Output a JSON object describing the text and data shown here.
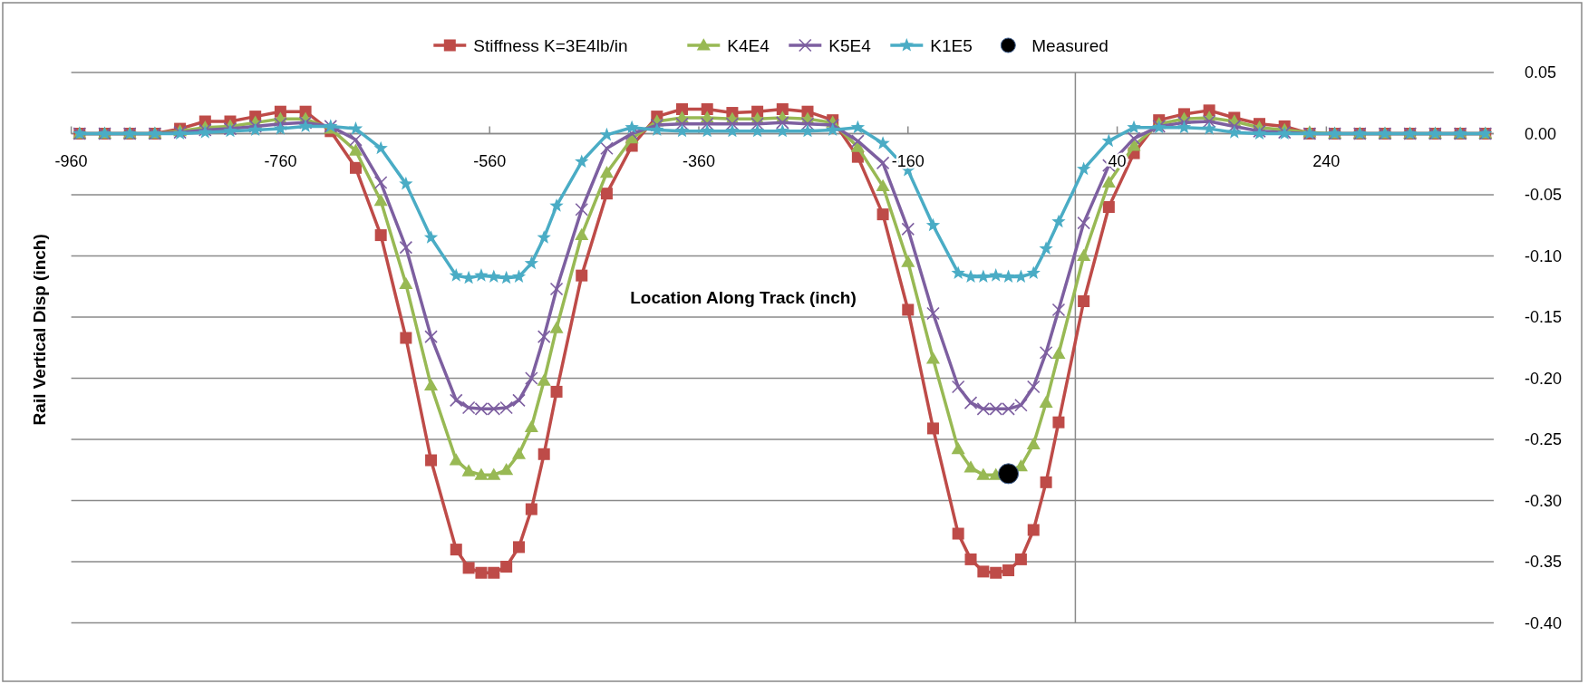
{
  "chart_data": {
    "type": "line",
    "xlabel": "Location Along Track (inch)",
    "ylabel": "Rail Vertical Disp (inch)",
    "x": [
      -952,
      -928,
      -904,
      -880,
      -856,
      -832,
      -808,
      -784,
      -760,
      -736,
      -712,
      -688,
      -664,
      -640,
      -616,
      -592,
      -580,
      -568,
      -556,
      -544,
      -532,
      -520,
      -508,
      -496,
      -472,
      -448,
      -424,
      -400,
      -376,
      -352,
      -328,
      -304,
      -280,
      -256,
      -232,
      -208,
      -184,
      -160,
      -136,
      -112,
      -100,
      -88,
      -76,
      -64,
      -52,
      -40,
      -28,
      -16,
      8,
      32,
      56,
      80,
      104,
      128,
      152,
      176,
      200,
      224,
      248,
      272,
      296,
      320,
      344,
      368,
      392
    ],
    "series": [
      {
        "name": "Stiffness K=3E4lb/in",
        "color": "#be4b48",
        "marker": "square",
        "values": [
          0,
          0,
          0,
          0,
          0.004,
          0.01,
          0.01,
          0.014,
          0.018,
          0.018,
          0.002,
          -0.028,
          -0.083,
          -0.167,
          -0.267,
          -0.34,
          -0.355,
          -0.359,
          -0.359,
          -0.354,
          -0.338,
          -0.307,
          -0.262,
          -0.211,
          -0.116,
          -0.049,
          -0.01,
          0.014,
          0.02,
          0.02,
          0.017,
          0.018,
          0.02,
          0.018,
          0.011,
          -0.019,
          -0.066,
          -0.144,
          -0.241,
          -0.327,
          -0.348,
          -0.358,
          -0.359,
          -0.357,
          -0.348,
          -0.324,
          -0.285,
          -0.236,
          -0.137,
          -0.06,
          -0.016,
          0.011,
          0.016,
          0.019,
          0.013,
          0.008,
          0.006,
          0,
          0,
          0,
          0,
          0,
          0,
          0,
          0
        ]
      },
      {
        "name": "K4E4",
        "color": "#98b954",
        "marker": "triangle",
        "values": [
          0,
          0,
          0,
          0,
          0.002,
          0.005,
          0.006,
          0.009,
          0.012,
          0.012,
          0.004,
          -0.014,
          -0.055,
          -0.123,
          -0.206,
          -0.267,
          -0.276,
          -0.279,
          -0.279,
          -0.275,
          -0.262,
          -0.24,
          -0.202,
          -0.159,
          -0.083,
          -0.032,
          -0.004,
          0.01,
          0.013,
          0.013,
          0.012,
          0.012,
          0.013,
          0.012,
          0.009,
          -0.011,
          -0.043,
          -0.105,
          -0.184,
          -0.258,
          -0.273,
          -0.279,
          -0.279,
          null,
          -0.272,
          -0.254,
          -0.22,
          -0.18,
          -0.1,
          -0.04,
          -0.01,
          0.008,
          0.012,
          0.013,
          0.01,
          0.005,
          0.003,
          0.001,
          0,
          0,
          0,
          0,
          0,
          0,
          0
        ]
      },
      {
        "name": "K5E4",
        "color": "#7d5fa0",
        "marker": "cross",
        "values": [
          0,
          0,
          0,
          0,
          0.001,
          0.003,
          0.004,
          0.006,
          0.008,
          0.009,
          0.006,
          -0.005,
          -0.04,
          -0.093,
          -0.166,
          -0.218,
          -0.224,
          -0.225,
          -0.225,
          -0.224,
          -0.218,
          -0.2,
          -0.166,
          -0.127,
          -0.062,
          -0.012,
          0.0,
          0.007,
          0.008,
          0.008,
          0.008,
          0.008,
          0.009,
          0.008,
          0.007,
          -0.006,
          -0.024,
          -0.078,
          -0.147,
          -0.207,
          -0.22,
          -0.225,
          -0.225,
          -0.225,
          -0.222,
          -0.207,
          -0.179,
          -0.144,
          -0.073,
          -0.026,
          -0.004,
          0.006,
          0.009,
          0.01,
          0.006,
          0.002,
          0.001,
          0,
          0,
          0,
          0,
          0,
          0,
          0,
          0
        ]
      },
      {
        "name": "K1E5",
        "color": "#4aacc5",
        "marker": "star",
        "values": [
          0,
          0,
          0,
          0,
          0,
          0.001,
          0.002,
          0.003,
          0.004,
          0.006,
          0.006,
          0.004,
          -0.012,
          -0.041,
          -0.085,
          -0.116,
          -0.118,
          -0.116,
          -0.117,
          -0.118,
          -0.117,
          -0.106,
          -0.085,
          -0.059,
          -0.023,
          -0.001,
          0.005,
          0.003,
          0.002,
          0.002,
          0.002,
          0.002,
          0.002,
          0.002,
          0.003,
          0.005,
          -0.008,
          -0.03,
          -0.075,
          -0.114,
          -0.117,
          -0.117,
          -0.116,
          -0.117,
          -0.117,
          -0.114,
          -0.094,
          -0.072,
          -0.029,
          -0.006,
          0.005,
          0.005,
          0.005,
          0.004,
          0.001,
          0,
          0,
          0,
          0,
          0,
          0,
          0,
          0,
          0,
          0
        ]
      },
      {
        "name": "Measured",
        "type": "scatter",
        "color": "#000000",
        "marker": "circle",
        "x": [
          -64
        ],
        "values": [
          -0.278
        ]
      }
    ],
    "xlim": [
      -960,
      400
    ],
    "xticks": [
      -960,
      -760,
      -560,
      -360,
      -160,
      40,
      240
    ],
    "ylim": [
      -0.4,
      0.05
    ],
    "yticks": [
      {
        "value": 0.05,
        "label": "0.05"
      },
      {
        "value": 0,
        "label": "0.00"
      },
      {
        "value": -0.05,
        "label": "-0.05"
      },
      {
        "value": -0.1,
        "label": "-0.10"
      },
      {
        "value": -0.15,
        "label": "-0.15"
      },
      {
        "value": -0.2,
        "label": "-0.20"
      },
      {
        "value": -0.25,
        "label": "-0.25"
      },
      {
        "value": -0.3,
        "label": "-0.30"
      },
      {
        "value": -0.35,
        "label": "-0.35"
      },
      {
        "value": -0.4,
        "label": "-0.40"
      }
    ],
    "grid": "y",
    "legend": "top"
  }
}
